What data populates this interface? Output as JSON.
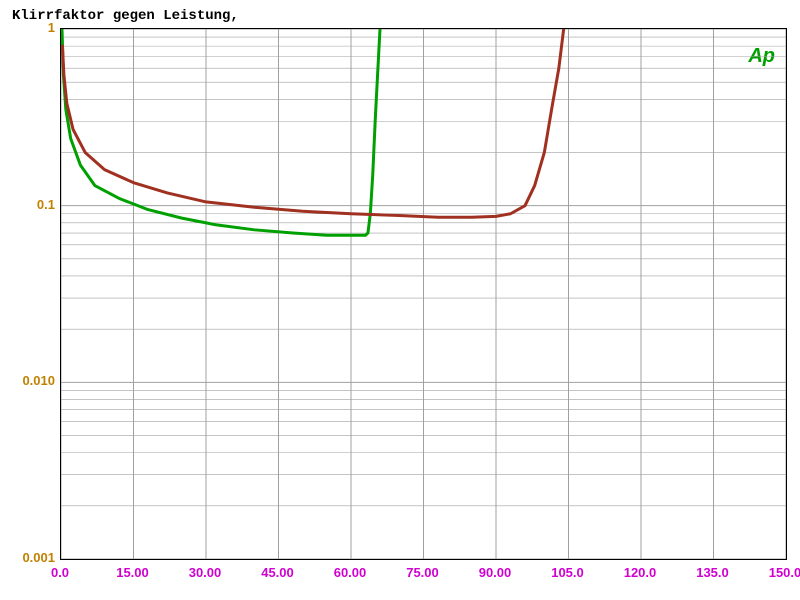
{
  "chart": {
    "type": "line-log-y",
    "title": "Klirrfaktor gegen Leistung,",
    "logo": "Ap",
    "background_color": "#ffffff",
    "grid_color": "#a0a0a0",
    "plot_border_color": "#000000",
    "x_axis": {
      "min": 0.0,
      "max": 150.0,
      "ticks": [
        0.0,
        15.0,
        30.0,
        45.0,
        60.0,
        75.0,
        90.0,
        105.0,
        120.0,
        135.0,
        150.0
      ],
      "tick_labels": [
        "0.0",
        "15.00",
        "30.00",
        "45.00",
        "60.00",
        "75.00",
        "90.00",
        "105.0",
        "120.0",
        "135.0",
        "150.0"
      ],
      "tick_color": "#d000d0",
      "tick_fontsize": 13
    },
    "y_axis": {
      "scale": "log",
      "min": 0.001,
      "max": 1.0,
      "ticks": [
        0.001,
        0.01,
        0.1,
        1.0
      ],
      "tick_labels": [
        "0.001",
        "0.010",
        "0.1",
        "1"
      ],
      "tick_color": "#c08000",
      "tick_fontsize": 13
    },
    "series": [
      {
        "name": "series-green",
        "color": "#00a000",
        "line_width": 3,
        "points": [
          [
            0.2,
            1.0
          ],
          [
            0.5,
            0.55
          ],
          [
            1.0,
            0.35
          ],
          [
            2.0,
            0.24
          ],
          [
            4.0,
            0.17
          ],
          [
            7.0,
            0.13
          ],
          [
            12.0,
            0.11
          ],
          [
            18.0,
            0.095
          ],
          [
            25.0,
            0.085
          ],
          [
            32.0,
            0.078
          ],
          [
            40.0,
            0.073
          ],
          [
            48.0,
            0.07
          ],
          [
            55.0,
            0.068
          ],
          [
            60.0,
            0.068
          ],
          [
            62.0,
            0.068
          ],
          [
            63.0,
            0.068
          ],
          [
            63.5,
            0.07
          ],
          [
            64.0,
            0.09
          ],
          [
            64.5,
            0.15
          ],
          [
            65.0,
            0.3
          ],
          [
            65.5,
            0.55
          ],
          [
            66.0,
            1.0
          ]
        ]
      },
      {
        "name": "series-red",
        "color": "#a03020",
        "line_width": 3,
        "points": [
          [
            0.3,
            0.8
          ],
          [
            0.6,
            0.55
          ],
          [
            1.2,
            0.38
          ],
          [
            2.5,
            0.27
          ],
          [
            5.0,
            0.2
          ],
          [
            9.0,
            0.16
          ],
          [
            15.0,
            0.135
          ],
          [
            22.0,
            0.118
          ],
          [
            30.0,
            0.105
          ],
          [
            40.0,
            0.098
          ],
          [
            50.0,
            0.093
          ],
          [
            60.0,
            0.09
          ],
          [
            70.0,
            0.088
          ],
          [
            78.0,
            0.086
          ],
          [
            85.0,
            0.086
          ],
          [
            90.0,
            0.087
          ],
          [
            93.0,
            0.09
          ],
          [
            96.0,
            0.1
          ],
          [
            98.0,
            0.13
          ],
          [
            100.0,
            0.2
          ],
          [
            101.5,
            0.35
          ],
          [
            103.0,
            0.6
          ],
          [
            104.0,
            1.0
          ]
        ]
      }
    ]
  }
}
